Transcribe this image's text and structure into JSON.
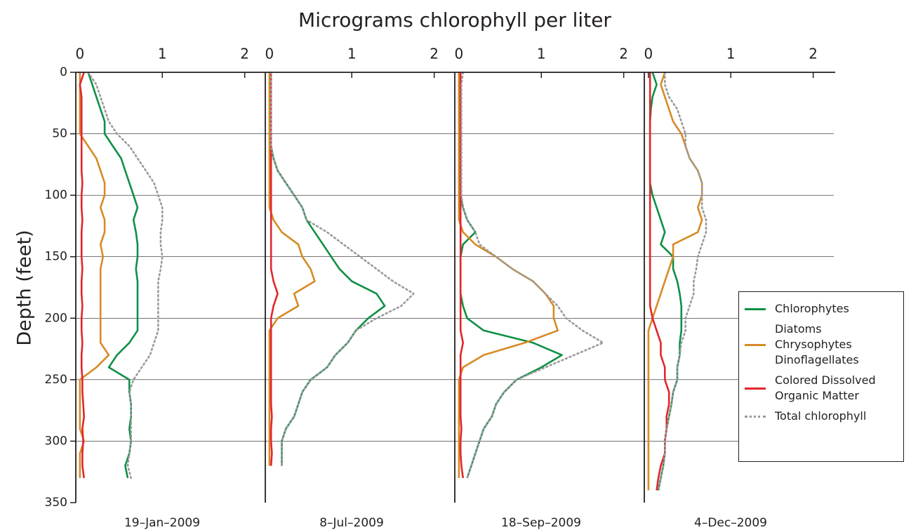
{
  "title": "Micrograms chlorophyll per liter",
  "ylabel": "Depth (feet)",
  "chart_data": [
    {
      "type": "line",
      "subtitle": "19–Jan–2009",
      "y": [
        0,
        10,
        20,
        30,
        40,
        50,
        60,
        70,
        80,
        90,
        100,
        110,
        120,
        130,
        140,
        150,
        160,
        170,
        180,
        190,
        200,
        210,
        220,
        230,
        240,
        250,
        260,
        270,
        280,
        290,
        300,
        310,
        320,
        330,
        340
      ],
      "ylim": [
        0,
        350
      ],
      "yticks": [
        0,
        50,
        100,
        150,
        200,
        250,
        300,
        350
      ],
      "grid": true,
      "xlim": [
        -0.05,
        2.25
      ],
      "xticks": [
        0,
        1,
        2
      ],
      "legend": "right",
      "series": [
        {
          "name": "Chlorophytes",
          "color": "#0f8f45",
          "linestyle": "solid",
          "values": [
            0.1,
            0.15,
            0.2,
            0.25,
            0.3,
            0.3,
            0.4,
            0.5,
            0.55,
            0.6,
            0.65,
            0.7,
            0.65,
            0.68,
            0.7,
            0.7,
            0.68,
            0.7,
            0.7,
            0.7,
            0.7,
            0.7,
            0.6,
            0.45,
            0.35,
            0.6,
            0.6,
            0.62,
            0.62,
            0.6,
            0.62,
            0.6,
            0.55,
            0.58,
            null
          ]
        },
        {
          "name": "Diatoms\nChrysophytes\nDinoflagellates",
          "color": "#d68b25",
          "linestyle": "solid",
          "values": [
            0,
            0,
            0,
            0,
            0,
            0,
            0.1,
            0.2,
            0.25,
            0.3,
            0.3,
            0.25,
            0.3,
            0.3,
            0.25,
            0.28,
            0.25,
            0.25,
            0.25,
            0.25,
            0.25,
            0.25,
            0.25,
            0.35,
            0.2,
            0,
            0,
            0,
            0,
            0,
            0.05,
            0,
            0,
            0,
            null
          ]
        },
        {
          "name": "Colored Dissolved\nOrganic Matter",
          "color": "#e3262b",
          "linestyle": "solid",
          "values": [
            0.05,
            0,
            0.02,
            0.02,
            0.02,
            0.02,
            0.02,
            0.02,
            0.02,
            0.03,
            0.02,
            0.02,
            0.03,
            0.02,
            0.02,
            0.02,
            0.03,
            0.02,
            0.02,
            0.03,
            0.02,
            0.02,
            0.03,
            0.02,
            0.02,
            0.03,
            0.03,
            0.04,
            0.05,
            0.03,
            0.04,
            0.03,
            0.03,
            0.05,
            null
          ]
        },
        {
          "name": "Total chlorophyll",
          "color": "#9a9a9c",
          "linestyle": "dotted",
          "values": [
            0.1,
            0.2,
            0.25,
            0.3,
            0.35,
            0.45,
            0.6,
            0.7,
            0.8,
            0.9,
            0.95,
            1.0,
            1.0,
            0.98,
            0.98,
            1.0,
            0.98,
            0.95,
            0.95,
            0.95,
            0.95,
            0.95,
            0.9,
            0.85,
            0.75,
            0.65,
            0.6,
            0.62,
            0.62,
            0.62,
            0.62,
            0.6,
            0.58,
            0.62,
            null
          ]
        }
      ]
    },
    {
      "type": "line",
      "subtitle": "8–Jul–2009",
      "y": [
        0,
        10,
        20,
        30,
        40,
        50,
        60,
        70,
        80,
        90,
        100,
        110,
        120,
        130,
        140,
        150,
        160,
        170,
        180,
        190,
        200,
        210,
        220,
        230,
        240,
        250,
        260,
        270,
        280,
        290,
        300,
        310,
        320,
        330,
        340
      ],
      "xlim": [
        -0.05,
        2.25
      ],
      "xticks": [
        0,
        1,
        2
      ],
      "series": [
        {
          "color": "#0f8f45",
          "values": [
            0.02,
            0.02,
            0.02,
            0.02,
            0.02,
            0.02,
            0.02,
            0.05,
            0.1,
            0.2,
            0.3,
            0.4,
            0.45,
            0.55,
            0.65,
            0.75,
            0.85,
            1.0,
            1.3,
            1.4,
            1.2,
            1.05,
            0.95,
            0.8,
            0.7,
            0.5,
            0.4,
            0.35,
            0.3,
            0.2,
            0.15,
            0.15,
            0.15,
            null,
            null
          ]
        },
        {
          "color": "#d68b25",
          "values": [
            0,
            0,
            0,
            0,
            0,
            0,
            0,
            0,
            0,
            0,
            0,
            0,
            0.05,
            0.15,
            0.35,
            0.4,
            0.5,
            0.55,
            0.3,
            0.35,
            0.1,
            0,
            0,
            0,
            0,
            0,
            0,
            0,
            0,
            0,
            0,
            0,
            0,
            null,
            null
          ]
        },
        {
          "color": "#e3262b",
          "values": [
            0.02,
            0.02,
            0.02,
            0.02,
            0.02,
            0.02,
            0.02,
            0.02,
            0.02,
            0.02,
            0.02,
            0.02,
            0.02,
            0.02,
            0.02,
            0.02,
            0.02,
            0.05,
            0.1,
            0.05,
            0.02,
            0.02,
            0.02,
            0.02,
            0.02,
            0.02,
            0.02,
            0.02,
            0.03,
            0.02,
            0.02,
            0.03,
            0.02,
            null,
            null
          ]
        },
        {
          "color": "#9a9a9c",
          "linestyle": "dotted",
          "values": [
            0.02,
            0.02,
            0.02,
            0.02,
            0.02,
            0.02,
            0.02,
            0.05,
            0.1,
            0.2,
            0.3,
            0.4,
            0.45,
            0.7,
            0.9,
            1.1,
            1.3,
            1.5,
            1.75,
            1.6,
            1.3,
            1.05,
            0.95,
            0.8,
            0.7,
            0.5,
            0.4,
            0.35,
            0.3,
            0.2,
            0.15,
            0.15,
            0.15,
            null,
            null
          ]
        }
      ]
    },
    {
      "type": "line",
      "subtitle": "18–Sep–2009",
      "y": [
        0,
        10,
        20,
        30,
        40,
        50,
        60,
        70,
        80,
        90,
        100,
        110,
        120,
        130,
        140,
        150,
        160,
        170,
        180,
        190,
        200,
        210,
        220,
        230,
        240,
        250,
        260,
        270,
        280,
        290,
        300,
        310,
        320,
        330,
        340
      ],
      "xlim": [
        -0.05,
        2.25
      ],
      "xticks": [
        0,
        1,
        2
      ],
      "series": [
        {
          "color": "#0f8f45",
          "values": [
            0.02,
            0.02,
            0.02,
            0.02,
            0.02,
            0.02,
            0.02,
            0.02,
            0.02,
            0.02,
            0.02,
            0.05,
            0.1,
            0.2,
            0.05,
            0.02,
            0.02,
            0.02,
            0.02,
            0.05,
            0.1,
            0.3,
            0.9,
            1.25,
            1.0,
            0.7,
            0.55,
            0.45,
            0.4,
            0.3,
            0.25,
            0.2,
            0.15,
            0.1,
            null
          ]
        },
        {
          "color": "#d68b25",
          "values": [
            0,
            0,
            0,
            0,
            0,
            0,
            0,
            0,
            0,
            0,
            0,
            0,
            0,
            0.05,
            0.2,
            0.45,
            0.65,
            0.9,
            1.05,
            1.15,
            1.15,
            1.2,
            0.8,
            0.3,
            0.05,
            0,
            0,
            0,
            0,
            0,
            0,
            0,
            0,
            0,
            null
          ]
        },
        {
          "color": "#e3262b",
          "values": [
            0.02,
            0.02,
            0.02,
            0.02,
            0.02,
            0.02,
            0.02,
            0.02,
            0.02,
            0.02,
            0.02,
            0.02,
            0.02,
            0.02,
            0.02,
            0.02,
            0.02,
            0.02,
            0.02,
            0.02,
            0.02,
            0.02,
            0.05,
            0.02,
            0.02,
            0.02,
            0.02,
            0.02,
            0.02,
            0.03,
            0.02,
            0.02,
            0.03,
            0.05,
            null
          ]
        },
        {
          "color": "#9a9a9c",
          "linestyle": "dotted",
          "values": [
            0.05,
            0.03,
            0.03,
            0.03,
            0.03,
            0.03,
            0.03,
            0.03,
            0.03,
            0.03,
            0.03,
            0.05,
            0.1,
            0.2,
            0.25,
            0.45,
            0.65,
            0.9,
            1.05,
            1.2,
            1.3,
            1.5,
            1.75,
            1.4,
            1.05,
            0.7,
            0.55,
            0.45,
            0.4,
            0.3,
            0.25,
            0.2,
            0.15,
            0.1,
            null
          ]
        }
      ]
    },
    {
      "type": "line",
      "subtitle": "4–Dec–2009",
      "y": [
        0,
        10,
        20,
        30,
        40,
        50,
        60,
        70,
        80,
        90,
        100,
        110,
        120,
        130,
        140,
        150,
        160,
        170,
        180,
        190,
        200,
        210,
        220,
        230,
        240,
        250,
        260,
        270,
        280,
        290,
        300,
        310,
        320,
        330,
        340
      ],
      "xlim": [
        -0.05,
        2.25
      ],
      "xticks": [
        0,
        1,
        2
      ],
      "series": [
        {
          "color": "#0f8f45",
          "values": [
            0.05,
            0.1,
            0.05,
            0.03,
            0.02,
            0.02,
            0.02,
            0.02,
            0.02,
            0.02,
            0.05,
            0.1,
            0.15,
            0.2,
            0.15,
            0.3,
            0.3,
            0.35,
            0.38,
            0.4,
            0.4,
            0.4,
            0.38,
            0.38,
            0.35,
            0.35,
            0.3,
            0.28,
            0.25,
            0.22,
            0.2,
            0.2,
            0.18,
            0.15,
            0.12
          ]
        },
        {
          "color": "#d68b25",
          "values": [
            0.2,
            0.15,
            0.2,
            0.25,
            0.3,
            0.4,
            0.45,
            0.5,
            0.6,
            0.65,
            0.65,
            0.6,
            0.65,
            0.6,
            0.3,
            0.3,
            0.25,
            0.2,
            0.15,
            0.1,
            0.05,
            0,
            0,
            0,
            0,
            0,
            0,
            0,
            0,
            0,
            0,
            0,
            0,
            0,
            0
          ]
        },
        {
          "color": "#e3262b",
          "values": [
            0.02,
            0.02,
            0.02,
            0.02,
            0.02,
            0.02,
            0.02,
            0.02,
            0.02,
            0.02,
            0.02,
            0.02,
            0.02,
            0.02,
            0.02,
            0.02,
            0.02,
            0.02,
            0.02,
            0.02,
            0.05,
            0.1,
            0.15,
            0.15,
            0.2,
            0.2,
            0.25,
            0.25,
            0.22,
            0.22,
            0.2,
            0.2,
            0.15,
            0.12,
            0.1
          ]
        },
        {
          "color": "#9a9a9c",
          "linestyle": "dotted",
          "values": [
            0.2,
            0.2,
            0.25,
            0.35,
            0.4,
            0.45,
            0.45,
            0.5,
            0.6,
            0.65,
            0.65,
            0.65,
            0.7,
            0.7,
            0.65,
            0.6,
            0.58,
            0.55,
            0.55,
            0.5,
            0.45,
            0.45,
            0.4,
            0.38,
            0.35,
            0.35,
            0.3,
            0.28,
            0.25,
            0.22,
            0.2,
            0.2,
            0.18,
            0.15,
            0.12
          ]
        }
      ]
    }
  ]
}
